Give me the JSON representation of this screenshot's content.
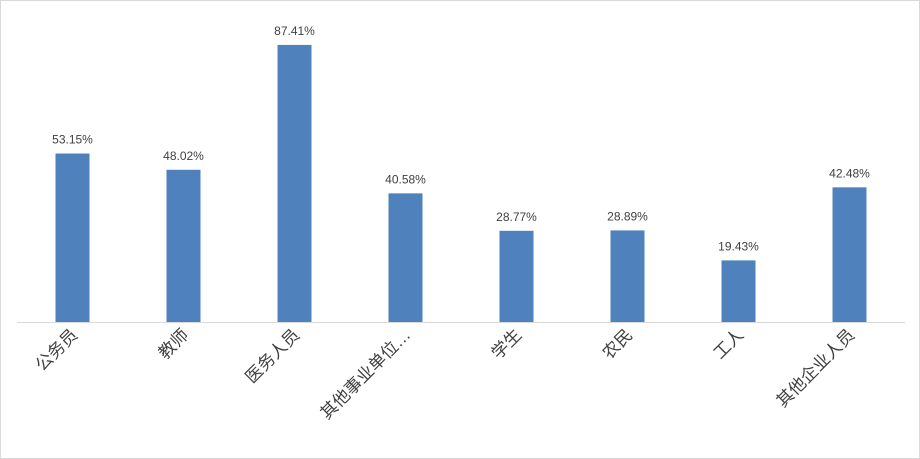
{
  "chart_data": {
    "type": "bar",
    "categories": [
      "公务员",
      "教师",
      "医务人员",
      "其他事业单位…",
      "学生",
      "农民",
      "工人",
      "其他企业人员"
    ],
    "values": [
      53.15,
      48.02,
      87.41,
      40.58,
      28.77,
      28.89,
      19.43,
      42.48
    ],
    "value_labels": [
      "53.15%",
      "48.02%",
      "87.41%",
      "40.58%",
      "28.77%",
      "28.89%",
      "19.43%",
      "42.48%"
    ],
    "color": "#4f81bd",
    "ylim": [
      0,
      100
    ]
  }
}
